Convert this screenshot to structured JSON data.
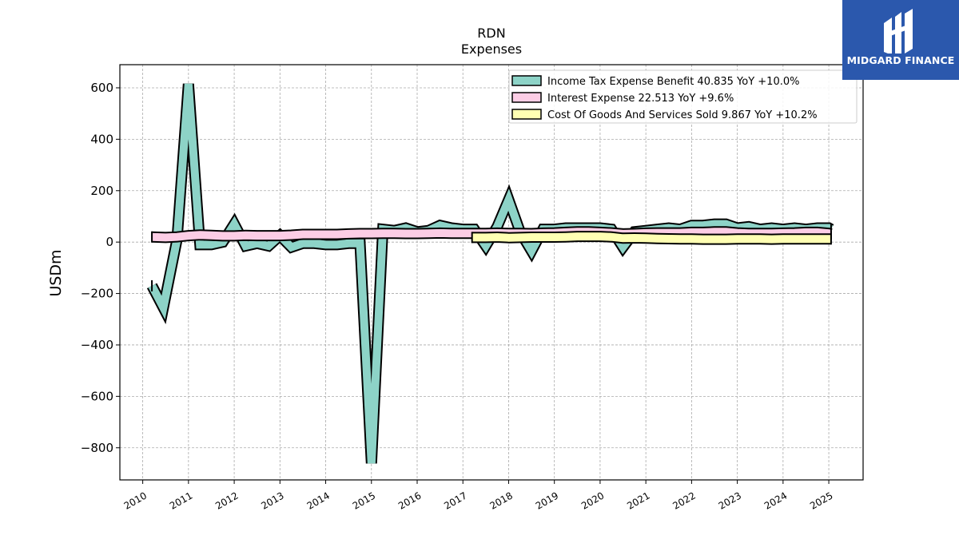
{
  "chart_data": {
    "type": "area",
    "title": "RDN",
    "subtitle": "Expenses",
    "ylabel": "USDm",
    "xlabel": "",
    "xlim": [
      2009.5,
      2025.75
    ],
    "ylim": [
      -925,
      690
    ],
    "yticks": [
      600,
      400,
      200,
      0,
      -200,
      -400,
      -600,
      -800
    ],
    "ytick_labels": [
      "600",
      "400",
      "200",
      "0",
      "−200",
      "−400",
      "−600",
      "−800"
    ],
    "xticks": [
      2010,
      2011,
      2012,
      2013,
      2014,
      2015,
      2016,
      2017,
      2018,
      2019,
      2020,
      2021,
      2022,
      2023,
      2024,
      2025
    ],
    "grid": true,
    "legend_position": "top-right",
    "series": [
      {
        "name": "Income Tax Expense Benefit  40.835 YoY +10.0%",
        "color": "#8dd3c7",
        "x": [
          2010.2,
          2010.45,
          2010.75,
          2011.0,
          2011.25,
          2011.5,
          2011.75,
          2012.0,
          2012.25,
          2012.5,
          2012.75,
          2013.0,
          2013.25,
          2013.5,
          2013.75,
          2014.0,
          2014.25,
          2014.5,
          2014.75,
          2015.0,
          2015.25,
          2015.5,
          2015.75,
          2016.0,
          2016.25,
          2016.5,
          2016.75,
          2017.0,
          2017.25,
          2017.5,
          2017.75,
          2018.0,
          2018.25,
          2018.5,
          2018.75,
          2019.0,
          2019.25,
          2019.5,
          2019.75,
          2020.0,
          2020.25,
          2020.5,
          2020.75,
          2021.0,
          2021.25,
          2021.5,
          2021.75,
          2022.0,
          2022.25,
          2022.5,
          2022.75,
          2023.0,
          2023.25,
          2023.5,
          2023.75,
          2024.0,
          2024.25,
          2024.5,
          2024.75,
          2025.0,
          2025.05
        ],
        "values": [
          -170,
          -255,
          10,
          615,
          -10,
          -10,
          0,
          70,
          -15,
          -5,
          -15,
          25,
          -20,
          -5,
          -5,
          -10,
          -10,
          -5,
          -5,
          -860,
          50,
          45,
          55,
          40,
          45,
          65,
          55,
          50,
          50,
          -15,
          60,
          165,
          40,
          -35,
          50,
          50,
          55,
          55,
          55,
          55,
          50,
          -20,
          40,
          45,
          50,
          55,
          50,
          65,
          65,
          70,
          70,
          55,
          60,
          50,
          55,
          50,
          55,
          50,
          55,
          55,
          50
        ]
      },
      {
        "name": "Interest Expense  22.513 YoY +9.6%",
        "color": "#fccde5",
        "x": [
          2010.2,
          2010.5,
          2010.75,
          2011.0,
          2011.25,
          2011.5,
          2011.75,
          2012.0,
          2012.25,
          2012.5,
          2012.75,
          2013.0,
          2013.25,
          2013.5,
          2013.75,
          2014.0,
          2014.25,
          2014.5,
          2014.75,
          2015.0,
          2015.25,
          2015.5,
          2015.75,
          2016.0,
          2016.25,
          2016.5,
          2016.75,
          2017.0,
          2017.25,
          2017.5,
          2017.75,
          2018.0,
          2018.25,
          2018.5,
          2018.75,
          2019.0,
          2019.25,
          2019.5,
          2019.75,
          2020.0,
          2020.25,
          2020.5,
          2020.75,
          2021.0,
          2021.25,
          2021.5,
          2021.75,
          2022.0,
          2022.25,
          2022.5,
          2022.75,
          2023.0,
          2023.25,
          2023.5,
          2023.75,
          2024.0,
          2024.25,
          2024.5,
          2024.75,
          2025.0,
          2025.05
        ],
        "values": [
          20,
          18,
          20,
          25,
          28,
          26,
          24,
          24,
          26,
          25,
          25,
          25,
          27,
          30,
          30,
          30,
          30,
          32,
          33,
          33,
          34,
          34,
          33,
          33,
          34,
          35,
          34,
          34,
          34,
          34,
          35,
          34,
          34,
          33,
          35,
          36,
          38,
          40,
          40,
          38,
          36,
          32,
          33,
          35,
          36,
          36,
          36,
          38,
          38,
          40,
          40,
          36,
          34,
          34,
          34,
          35,
          36,
          38,
          38,
          34,
          32
        ]
      },
      {
        "name": "Cost Of Goods And Services Sold  9.867 YoY +10.2%",
        "color": "#ffffb3",
        "x": [
          2017.2,
          2017.5,
          2017.75,
          2018.0,
          2018.25,
          2018.5,
          2018.75,
          2019.0,
          2019.25,
          2019.5,
          2019.75,
          2020.0,
          2020.25,
          2020.5,
          2020.75,
          2021.0,
          2021.25,
          2021.5,
          2021.75,
          2022.0,
          2022.25,
          2022.5,
          2022.75,
          2023.0,
          2023.25,
          2023.5,
          2023.75,
          2024.0,
          2024.25,
          2024.5,
          2024.75,
          2025.0,
          2025.05
        ],
        "values": [
          18,
          18,
          19,
          17,
          18,
          19,
          19,
          19,
          20,
          22,
          22,
          22,
          20,
          15,
          16,
          15,
          14,
          13,
          12,
          12,
          11,
          11,
          11,
          12,
          12,
          12,
          11,
          12,
          12,
          12,
          12,
          12,
          12
        ]
      }
    ]
  },
  "logo": {
    "text": "MIDGARD FINANCE",
    "color": "#2b58ad"
  }
}
